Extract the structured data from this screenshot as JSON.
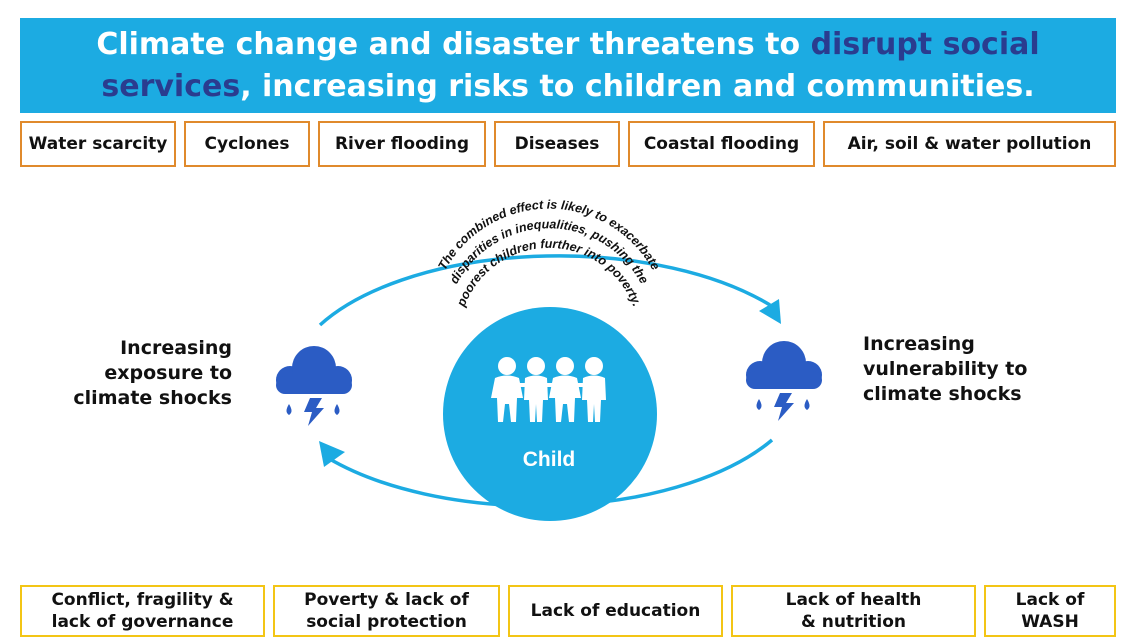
{
  "header": {
    "title_part1": "Climate change and disaster threatens to ",
    "title_highlight1": "disrupt social",
    "title_highlight2": "services",
    "title_part2": ", increasing risks to children and communities."
  },
  "hazards": [
    "Water scarcity",
    "Cyclones",
    "River flooding",
    "Diseases",
    "Coastal flooding",
    "Air, soil & water pollution"
  ],
  "cycle": {
    "left_label": [
      "Increasing",
      "exposure to",
      "climate shocks"
    ],
    "right_label": [
      "Increasing",
      "vulnerability to",
      "climate shocks"
    ],
    "center_label": "Child",
    "arc_text": [
      "The combined effect is likely to exacerbate",
      "disparities in inequalities, pushing the",
      "poorest children further into poverty."
    ]
  },
  "drivers": [
    [
      "Conflict, fragility &",
      "lack of governance"
    ],
    [
      "Poverty & lack of",
      "social protection"
    ],
    [
      "Lack of education"
    ],
    [
      "Lack of health",
      "& nutrition"
    ],
    [
      "Lack of",
      "WASH"
    ]
  ],
  "colors": {
    "banner": "#1cabe2",
    "highlight": "#2a3c8f",
    "hazard_border": "#e08a2c",
    "driver_border": "#f3c515",
    "cycle_arrow": "#1cabe2",
    "cloud": "#2b5cc4"
  }
}
